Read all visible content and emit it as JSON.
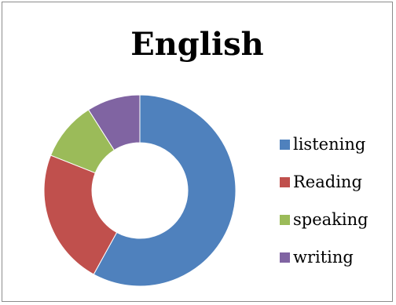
{
  "chart_data": {
    "type": "pie",
    "variant": "donut",
    "title": "English",
    "categories": [
      "listening",
      "Reading",
      "speaking",
      "writing"
    ],
    "values": [
      58,
      23,
      10,
      9
    ],
    "colors": [
      "#4f81bd",
      "#c0504d",
      "#9bbb59",
      "#8064a2"
    ],
    "legend_position": "right",
    "start_angle_deg": 0,
    "direction": "clockwise"
  }
}
